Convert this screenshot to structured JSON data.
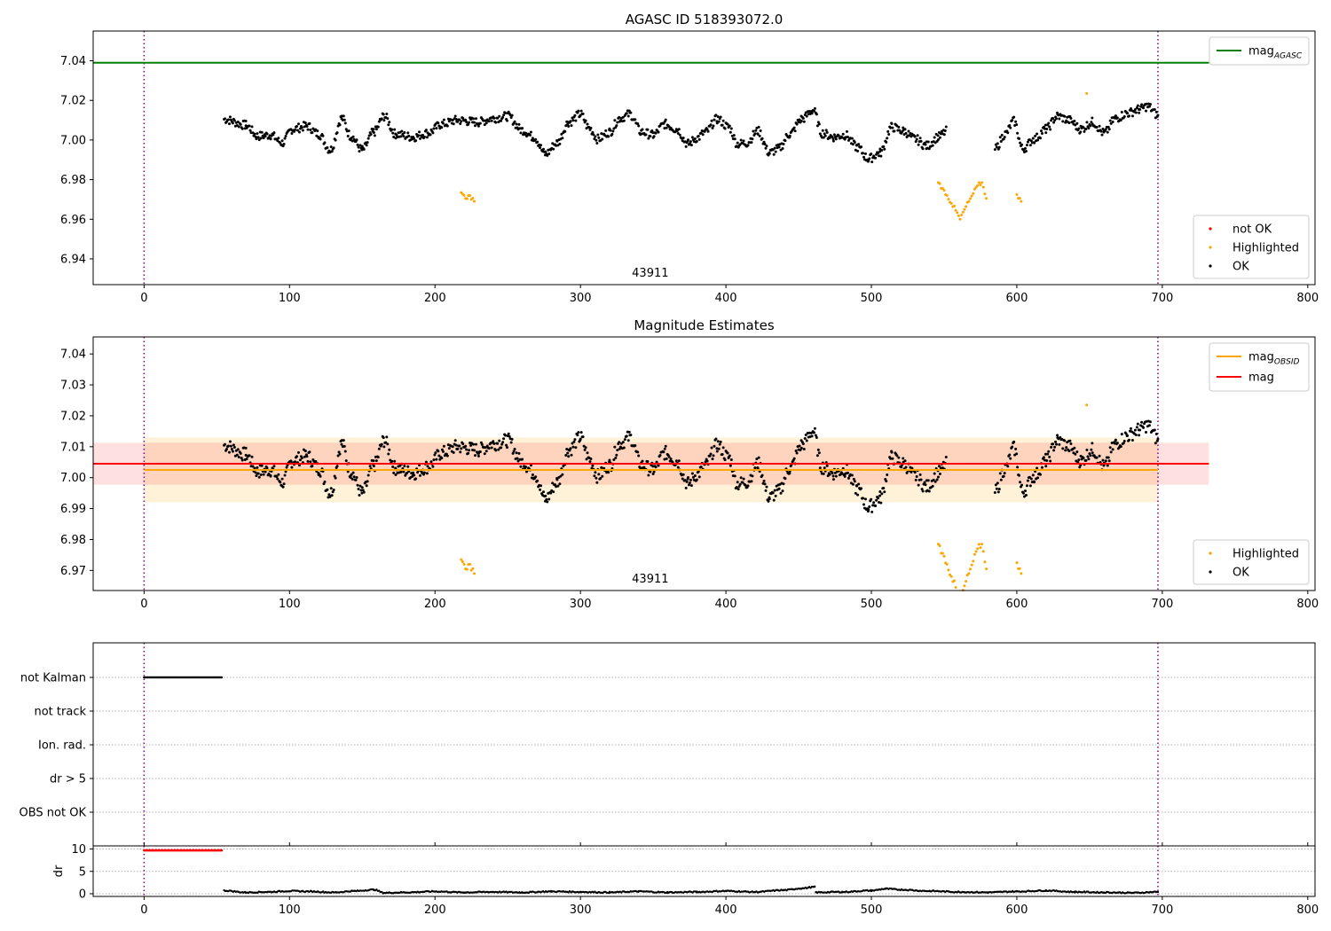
{
  "chart_data": [
    {
      "id": "mag-top",
      "type": "scatter",
      "title": "AGASC ID 518393072.0",
      "xlabel": "",
      "ylabel": "",
      "xlim": [
        -35,
        805
      ],
      "ylim": [
        6.927,
        7.055
      ],
      "xticks": [
        0,
        100,
        200,
        300,
        400,
        500,
        600,
        700,
        800
      ],
      "yticks": [
        6.94,
        6.96,
        6.98,
        7.0,
        7.02,
        7.04
      ],
      "vlines": [
        0,
        697
      ],
      "hlines": [
        {
          "name": "mag_AGASC",
          "value": 7.039,
          "x": [
            -35,
            732
          ],
          "color": "#008000"
        }
      ],
      "annotation": {
        "text": "43911",
        "x": 348,
        "y": 6.929
      },
      "legend_upper": {
        "placement": "top-right",
        "entries": [
          {
            "base": "mag",
            "sub": "AGASC",
            "color": "#008000",
            "marker": "line"
          }
        ]
      },
      "legend_lower": {
        "placement": "bottom-right",
        "entries": [
          {
            "label": "not OK",
            "color": "#ff0000"
          },
          {
            "label": "Highlighted",
            "color": "#ffa500"
          },
          {
            "label": "OK",
            "color": "#000000"
          }
        ]
      }
    },
    {
      "id": "mag-mid",
      "type": "scatter",
      "title": "Magnitude Estimates",
      "xlabel": "",
      "ylabel": "",
      "xlim": [
        -35,
        805
      ],
      "ylim": [
        6.9635,
        7.0455
      ],
      "xticks": [
        0,
        100,
        200,
        300,
        400,
        500,
        600,
        700,
        800
      ],
      "yticks": [
        6.97,
        6.98,
        6.99,
        7.0,
        7.01,
        7.02,
        7.03,
        7.04
      ],
      "vlines": [
        0,
        697
      ],
      "bands": [
        {
          "y": [
            6.992,
            7.013
          ],
          "x": [
            0,
            697
          ],
          "color": "#ffa500",
          "opacity": 0.15
        },
        {
          "y": [
            6.9977,
            7.0113
          ],
          "x": [
            -35,
            732
          ],
          "color": "#ff0000",
          "opacity": 0.12
        }
      ],
      "hlines": [
        {
          "name": "mag_OBSID",
          "value": 7.0025,
          "x": [
            0,
            697
          ],
          "color": "#ffa500"
        },
        {
          "name": "mag",
          "value": 7.0045,
          "x": [
            -35,
            732
          ],
          "color": "#ff0000"
        }
      ],
      "annotation": {
        "text": "43911",
        "x": 348,
        "y": 6.9655
      },
      "legend_upper": {
        "placement": "top-right",
        "entries": [
          {
            "base": "mag",
            "sub": "OBSID",
            "color": "#ffa500",
            "marker": "line"
          },
          {
            "base": "mag",
            "sub": "",
            "color": "#ff0000",
            "marker": "line"
          }
        ]
      },
      "legend_lower": {
        "placement": "bottom-right",
        "entries": [
          {
            "label": "Highlighted",
            "color": "#ffa500"
          },
          {
            "label": "OK",
            "color": "#000000"
          }
        ]
      }
    },
    {
      "id": "flags",
      "type": "scatter",
      "xlim": [
        -35,
        805
      ],
      "ylim": [
        -0.5,
        4.5
      ],
      "categories": [
        "not Kalman",
        "not track",
        "Ion. rad.",
        "dr > 5",
        "OBS not OK"
      ],
      "vlines": [
        0,
        697
      ],
      "flag_points": [
        {
          "category": "not Kalman",
          "x_from": 0,
          "x_to": 54,
          "step": 0.6
        }
      ]
    },
    {
      "id": "dr",
      "type": "scatter",
      "ylabel": "dr",
      "xlim": [
        -35,
        805
      ],
      "ylim": [
        -0.6,
        10.7
      ],
      "xticks": [
        0,
        100,
        200,
        300,
        400,
        500,
        600,
        700,
        800
      ],
      "yticks": [
        0,
        5,
        10
      ],
      "vlines": [
        0,
        697
      ],
      "clipped": {
        "x_from": 0,
        "x_to": 54,
        "step": 0.6,
        "value": 9.7,
        "color": "#ff0000"
      },
      "series": [
        {
          "x": [
            55,
            70,
            85,
            100,
            115,
            130,
            145,
            158,
            165,
            180,
            200,
            220,
            240,
            260,
            280,
            300,
            320,
            340,
            360,
            380,
            400,
            420,
            440,
            452,
            461,
            462,
            480,
            500,
            510,
            520,
            540,
            560,
            580,
            600,
            620,
            640,
            660,
            680,
            697
          ],
          "y": [
            0.7,
            0.3,
            0.4,
            0.6,
            0.5,
            0.3,
            0.6,
            0.9,
            0.2,
            0.3,
            0.5,
            0.3,
            0.4,
            0.3,
            0.5,
            0.4,
            0.3,
            0.5,
            0.3,
            0.4,
            0.6,
            0.4,
            0.8,
            1.2,
            1.5,
            0.3,
            0.4,
            0.7,
            1.1,
            0.9,
            0.6,
            0.4,
            0.3,
            0.5,
            0.7,
            0.4,
            0.3,
            0.2,
            0.4
          ]
        }
      ]
    }
  ],
  "mag_series": {
    "ok": [
      [
        55,
        7.0105
      ],
      [
        70,
        7.0075
      ],
      [
        78,
        7.002
      ],
      [
        87,
        7.0025
      ],
      [
        95,
        6.9985
      ],
      [
        102,
        7.0055
      ],
      [
        112,
        7.007
      ],
      [
        120,
        7.003
      ],
      [
        128,
        6.995
      ],
      [
        136,
        7.011
      ],
      [
        142,
        7.002
      ],
      [
        150,
        6.995
      ],
      [
        158,
        7.004
      ],
      [
        165,
        7.012
      ],
      [
        173,
        7.003
      ],
      [
        185,
        7.0015
      ],
      [
        195,
        7.0035
      ],
      [
        205,
        7.008
      ],
      [
        215,
        7.01
      ],
      [
        230,
        7.009
      ],
      [
        240,
        7.011
      ],
      [
        250,
        7.012
      ],
      [
        260,
        7.005
      ],
      [
        268,
        7.0015
      ],
      [
        276,
        6.993
      ],
      [
        284,
        6.9985
      ],
      [
        292,
        7.009
      ],
      [
        300,
        7.013
      ],
      [
        306,
        7.006
      ],
      [
        312,
        7.0005
      ],
      [
        320,
        7.004
      ],
      [
        327,
        7.011
      ],
      [
        334,
        7.013
      ],
      [
        342,
        7.004
      ],
      [
        350,
        7.0025
      ],
      [
        358,
        7.008
      ],
      [
        366,
        7.0055
      ],
      [
        374,
        6.998
      ],
      [
        380,
        7.001
      ],
      [
        386,
        7.004
      ],
      [
        394,
        7.0105
      ],
      [
        402,
        7.0065
      ],
      [
        408,
        6.998
      ],
      [
        414,
        6.9985
      ],
      [
        422,
        7.0045
      ],
      [
        430,
        6.9935
      ],
      [
        436,
        6.9955
      ],
      [
        444,
        7.003
      ],
      [
        452,
        7.0105
      ],
      [
        460,
        7.015
      ],
      [
        466,
        7.0035
      ],
      [
        474,
        7.0015
      ],
      [
        482,
        7.0025
      ],
      [
        490,
        6.9965
      ],
      [
        498,
        6.9905
      ],
      [
        506,
        6.9935
      ],
      [
        514,
        7.0065
      ],
      [
        522,
        7.0045
      ],
      [
        530,
        7.0005
      ],
      [
        538,
        6.997
      ],
      [
        546,
        7.0015
      ],
      [
        552,
        7.0045
      ],
      [
        585,
        6.9955
      ],
      [
        592,
        7.003
      ],
      [
        598,
        7.0095
      ],
      [
        604,
        6.9955
      ],
      [
        612,
        7.0005
      ],
      [
        620,
        7.0055
      ],
      [
        628,
        7.012
      ],
      [
        636,
        7.01
      ],
      [
        644,
        7.0055
      ],
      [
        652,
        7.009
      ],
      [
        660,
        7.0035
      ],
      [
        668,
        7.011
      ],
      [
        676,
        7.0135
      ],
      [
        684,
        7.0155
      ],
      [
        690,
        7.017
      ],
      [
        697,
        7.0125
      ]
    ],
    "highlighted": [
      [
        218,
        6.9735
      ],
      [
        221,
        6.9705
      ],
      [
        224,
        6.972
      ],
      [
        227,
        6.969
      ],
      [
        546,
        6.9785
      ],
      [
        549,
        6.9755
      ],
      [
        552,
        6.972
      ],
      [
        555,
        6.968
      ],
      [
        558,
        6.9645
      ],
      [
        561,
        6.96
      ],
      [
        564,
        6.965
      ],
      [
        567,
        6.969
      ],
      [
        570,
        6.973
      ],
      [
        573,
        6.977
      ],
      [
        576,
        6.9785
      ],
      [
        579,
        6.9705
      ],
      [
        600,
        6.9725
      ],
      [
        603,
        6.969
      ],
      [
        648,
        7.0235
      ]
    ]
  }
}
